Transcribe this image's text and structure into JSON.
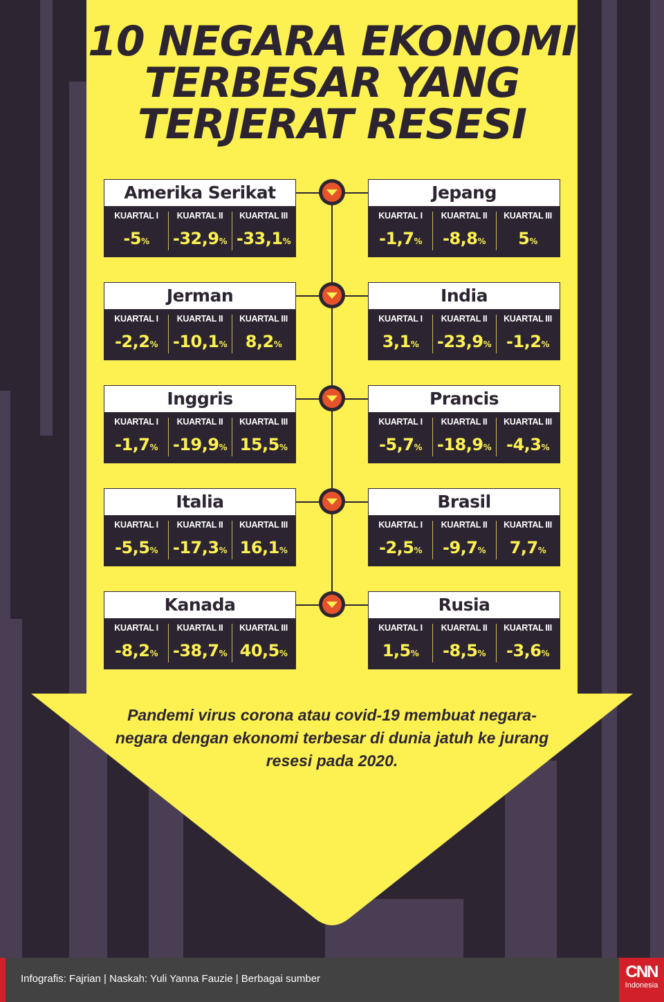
{
  "title": [
    "10 NEGARA EKONOMI",
    "TERBESAR YANG",
    "TERJERAT RESESI"
  ],
  "quarter_labels": [
    "KUARTAL I",
    "KUARTAL II",
    "KUARTAL III"
  ],
  "percent_unit": "%",
  "countries": [
    {
      "name": "Amerika Serikat",
      "values": [
        "-5",
        "-32,9",
        "-33,1"
      ]
    },
    {
      "name": "Jepang",
      "values": [
        "-1,7",
        "-8,8",
        "5"
      ]
    },
    {
      "name": "Jerman",
      "values": [
        "-2,2",
        "-10,1",
        "8,2"
      ]
    },
    {
      "name": "India",
      "values": [
        "3,1",
        "-23,9",
        "-1,2"
      ]
    },
    {
      "name": "Inggris",
      "values": [
        "-1,7",
        "-19,9",
        "15,5"
      ]
    },
    {
      "name": "Prancis",
      "values": [
        "-5,7",
        "-18,9",
        "-4,3"
      ]
    },
    {
      "name": "Italia",
      "values": [
        "-5,5",
        "-17,3",
        "16,1"
      ]
    },
    {
      "name": "Brasil",
      "values": [
        "-2,5",
        "-9,7",
        "7,7"
      ]
    },
    {
      "name": "Kanada",
      "values": [
        "-8,2",
        "-38,7",
        "40,5"
      ]
    },
    {
      "name": "Rusia",
      "values": [
        "1,5",
        "-8,5",
        "-3,6"
      ]
    }
  ],
  "description": "Pandemi virus corona atau covid-19 membuat negara-negara dengan ekonomi terbesar di dunia jatuh ke jurang resesi pada 2020.",
  "footer": {
    "credit": "Infografis: Fajrian | Naskah: Yuli Yanna Fauzie | Berbagai sumber",
    "logo": "CNN",
    "logo_sub": "Indonesia"
  },
  "colors": {
    "yellow": "#fdf152",
    "dark": "#2c2531",
    "orange": "#e6532a",
    "red": "#d2202a"
  }
}
